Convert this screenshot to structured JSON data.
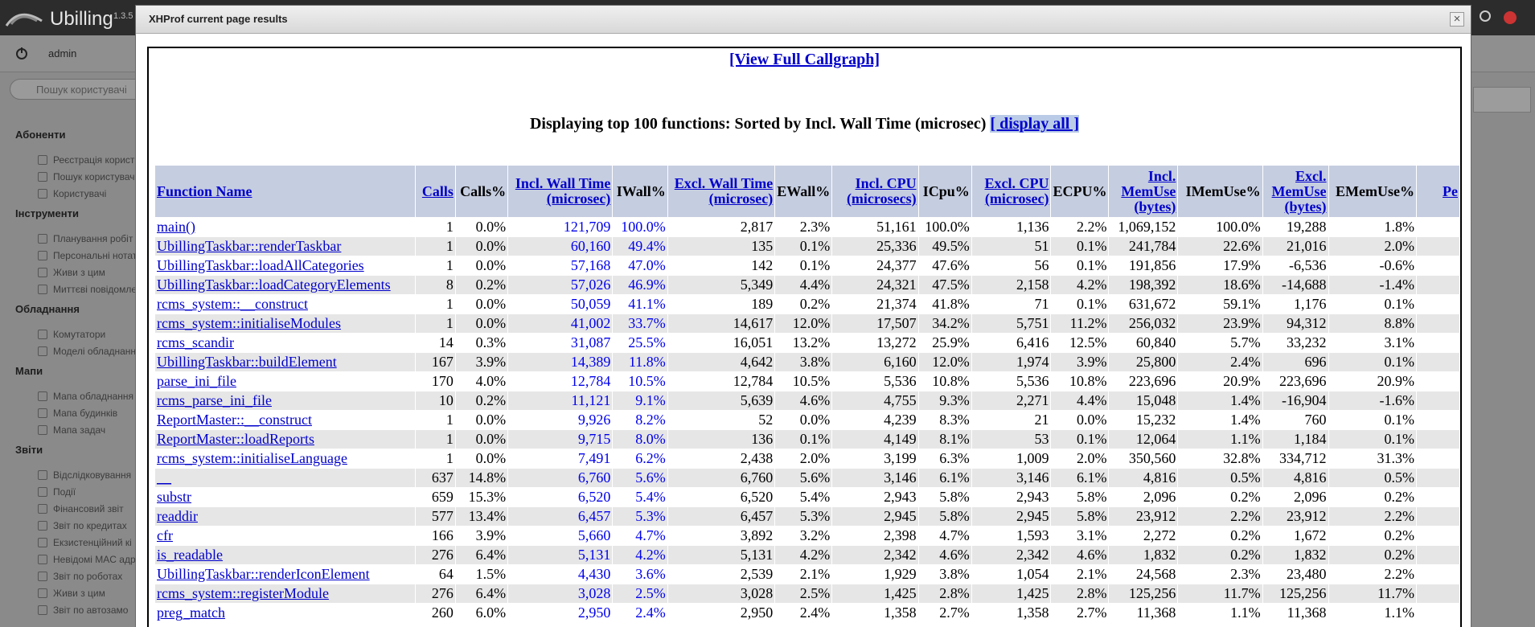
{
  "app": {
    "name": "Ubilling",
    "version": "1.3.5",
    "user": "admin",
    "search_placeholder": "Пошук користувачі"
  },
  "sidebar": [
    {
      "title": "Абоненти",
      "items": [
        "Реєстрація корист",
        "Пошук користувач",
        "Користувачі"
      ]
    },
    {
      "title": "Інструменти",
      "items": [
        "Планування робіт",
        "Персональні нотат",
        "Живи з цим",
        "Миттєві повідомле"
      ]
    },
    {
      "title": "Обладнання",
      "items": [
        "Комутатори",
        "Моделі обладнанн"
      ]
    },
    {
      "title": "Мапи",
      "items": [
        "Мапа обладнання",
        "Мапа будинків",
        "Мапа задач"
      ]
    },
    {
      "title": "Звіти",
      "items": [
        "Відслідковування",
        "Події",
        "Фінансовий звіт",
        "Звіт по кредитах",
        "Екзистенційний кі",
        "Невідомі MAC адр",
        "Звіт по роботах",
        "Живи з цим",
        "Звіт по автозамо"
      ]
    }
  ],
  "modal": {
    "title": "XHProf current page results",
    "close": "×",
    "callgraph_link": "[View Full Callgraph]",
    "caption": "Displaying top 100 functions: Sorted by Incl. Wall Time (microsec)",
    "display_all": "[ display all ]"
  },
  "table": {
    "headers": [
      {
        "text": "Function Name",
        "link": true
      },
      {
        "text": "Calls",
        "link": true
      },
      {
        "text": "Calls%",
        "link": false
      },
      {
        "text": "Incl. Wall Time (microsec)",
        "link": true
      },
      {
        "text": "IWall%",
        "link": false
      },
      {
        "text": "Excl. Wall Time (microsec)",
        "link": true
      },
      {
        "text": "EWall%",
        "link": false
      },
      {
        "text": "Incl. CPU (microsecs)",
        "link": true
      },
      {
        "text": "ICpu%",
        "link": false
      },
      {
        "text": "Excl. CPU (microsec)",
        "link": true
      },
      {
        "text": "ECPU%",
        "link": false
      },
      {
        "text": "Incl. MemUse (bytes)",
        "link": true
      },
      {
        "text": "IMemUse%",
        "link": false
      },
      {
        "text": "Excl. MemUse (bytes)",
        "link": true
      },
      {
        "text": "EMemUse%",
        "link": false
      },
      {
        "text": "Pe",
        "link": true
      }
    ],
    "rows": [
      [
        "main()",
        "1",
        "0.0%",
        "121,709",
        "100.0%",
        "2,817",
        "2.3%",
        "51,161",
        "100.0%",
        "1,136",
        "2.2%",
        "1,069,152",
        "100.0%",
        "19,288",
        "1.8%"
      ],
      [
        "UbillingTaskbar::renderTaskbar",
        "1",
        "0.0%",
        "60,160",
        "49.4%",
        "135",
        "0.1%",
        "25,336",
        "49.5%",
        "51",
        "0.1%",
        "241,784",
        "22.6%",
        "21,016",
        "2.0%"
      ],
      [
        "UbillingTaskbar::loadAllCategories",
        "1",
        "0.0%",
        "57,168",
        "47.0%",
        "142",
        "0.1%",
        "24,377",
        "47.6%",
        "56",
        "0.1%",
        "191,856",
        "17.9%",
        "-6,536",
        "-0.6%"
      ],
      [
        "UbillingTaskbar::loadCategoryElements",
        "8",
        "0.2%",
        "57,026",
        "46.9%",
        "5,349",
        "4.4%",
        "24,321",
        "47.5%",
        "2,158",
        "4.2%",
        "198,392",
        "18.6%",
        "-14,688",
        "-1.4%"
      ],
      [
        "rcms_system::__construct",
        "1",
        "0.0%",
        "50,059",
        "41.1%",
        "189",
        "0.2%",
        "21,374",
        "41.8%",
        "71",
        "0.1%",
        "631,672",
        "59.1%",
        "1,176",
        "0.1%"
      ],
      [
        "rcms_system::initialiseModules",
        "1",
        "0.0%",
        "41,002",
        "33.7%",
        "14,617",
        "12.0%",
        "17,507",
        "34.2%",
        "5,751",
        "11.2%",
        "256,032",
        "23.9%",
        "94,312",
        "8.8%"
      ],
      [
        "rcms_scandir",
        "14",
        "0.3%",
        "31,087",
        "25.5%",
        "16,051",
        "13.2%",
        "13,272",
        "25.9%",
        "6,416",
        "12.5%",
        "60,840",
        "5.7%",
        "33,232",
        "3.1%"
      ],
      [
        "UbillingTaskbar::buildElement",
        "167",
        "3.9%",
        "14,389",
        "11.8%",
        "4,642",
        "3.8%",
        "6,160",
        "12.0%",
        "1,974",
        "3.9%",
        "25,800",
        "2.4%",
        "696",
        "0.1%"
      ],
      [
        "parse_ini_file",
        "170",
        "4.0%",
        "12,784",
        "10.5%",
        "12,784",
        "10.5%",
        "5,536",
        "10.8%",
        "5,536",
        "10.8%",
        "223,696",
        "20.9%",
        "223,696",
        "20.9%"
      ],
      [
        "rcms_parse_ini_file",
        "10",
        "0.2%",
        "11,121",
        "9.1%",
        "5,639",
        "4.6%",
        "4,755",
        "9.3%",
        "2,271",
        "4.4%",
        "15,048",
        "1.4%",
        "-16,904",
        "-1.6%"
      ],
      [
        "ReportMaster::__construct",
        "1",
        "0.0%",
        "9,926",
        "8.2%",
        "52",
        "0.0%",
        "4,239",
        "8.3%",
        "21",
        "0.0%",
        "15,232",
        "1.4%",
        "760",
        "0.1%"
      ],
      [
        "ReportMaster::loadReports",
        "1",
        "0.0%",
        "9,715",
        "8.0%",
        "136",
        "0.1%",
        "4,149",
        "8.1%",
        "53",
        "0.1%",
        "12,064",
        "1.1%",
        "1,184",
        "0.1%"
      ],
      [
        "rcms_system::initialiseLanguage",
        "1",
        "0.0%",
        "7,491",
        "6.2%",
        "2,438",
        "2.0%",
        "3,199",
        "6.3%",
        "1,009",
        "2.0%",
        "350,560",
        "32.8%",
        "334,712",
        "31.3%"
      ],
      [
        "__",
        "637",
        "14.8%",
        "6,760",
        "5.6%",
        "6,760",
        "5.6%",
        "3,146",
        "6.1%",
        "3,146",
        "6.1%",
        "4,816",
        "0.5%",
        "4,816",
        "0.5%"
      ],
      [
        "substr",
        "659",
        "15.3%",
        "6,520",
        "5.4%",
        "6,520",
        "5.4%",
        "2,943",
        "5.8%",
        "2,943",
        "5.8%",
        "2,096",
        "0.2%",
        "2,096",
        "0.2%"
      ],
      [
        "readdir",
        "577",
        "13.4%",
        "6,457",
        "5.3%",
        "6,457",
        "5.3%",
        "2,945",
        "5.8%",
        "2,945",
        "5.8%",
        "23,912",
        "2.2%",
        "23,912",
        "2.2%"
      ],
      [
        "cfr",
        "166",
        "3.9%",
        "5,660",
        "4.7%",
        "3,892",
        "3.2%",
        "2,398",
        "4.7%",
        "1,593",
        "3.1%",
        "2,272",
        "0.2%",
        "1,672",
        "0.2%"
      ],
      [
        "is_readable",
        "276",
        "6.4%",
        "5,131",
        "4.2%",
        "5,131",
        "4.2%",
        "2,342",
        "4.6%",
        "2,342",
        "4.6%",
        "1,832",
        "0.2%",
        "1,832",
        "0.2%"
      ],
      [
        "UbillingTaskbar::renderIconElement",
        "64",
        "1.5%",
        "4,430",
        "3.6%",
        "2,539",
        "2.1%",
        "1,929",
        "3.8%",
        "1,054",
        "2.1%",
        "24,568",
        "2.3%",
        "23,480",
        "2.2%"
      ],
      [
        "rcms_system::registerModule",
        "276",
        "6.4%",
        "3,028",
        "2.5%",
        "3,028",
        "2.5%",
        "1,425",
        "2.8%",
        "1,425",
        "2.8%",
        "125,256",
        "11.7%",
        "125,256",
        "11.7%"
      ],
      [
        "preg_match",
        "260",
        "6.0%",
        "2,950",
        "2.4%",
        "2,950",
        "2.4%",
        "1,358",
        "2.7%",
        "1,358",
        "2.7%",
        "11,368",
        "1.1%",
        "11,368",
        "1.1%"
      ]
    ]
  }
}
